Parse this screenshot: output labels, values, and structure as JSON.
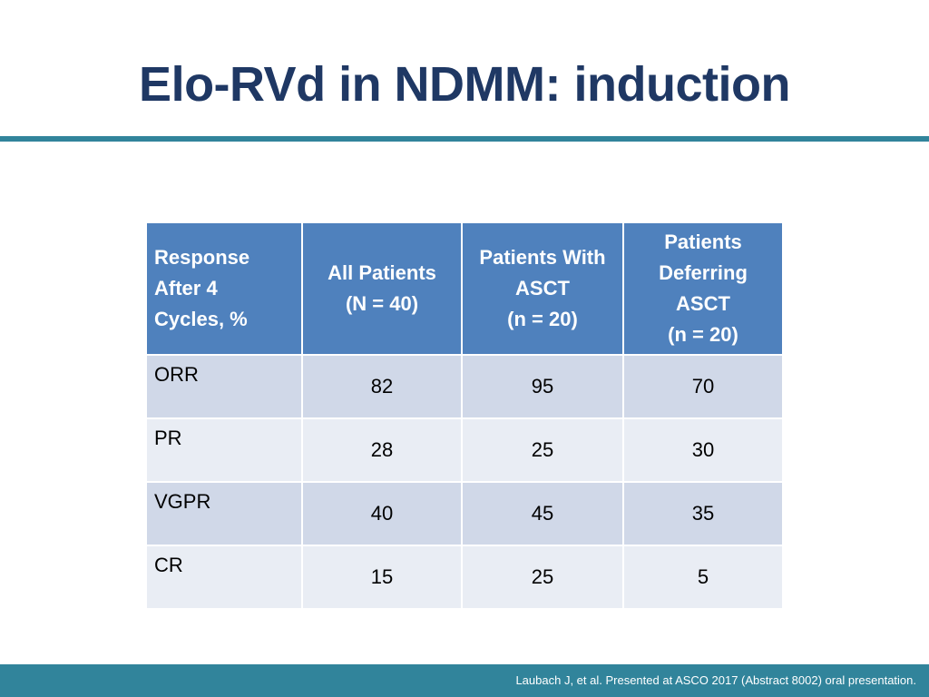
{
  "slide": {
    "title": "Elo-RVd in NDMM: induction",
    "footer": "Laubach J, et al. Presented at ASCO 2017 (Abstract 8002) oral presentation."
  },
  "table": {
    "headers": [
      "Response\nAfter 4\nCycles, %",
      "All Patients\n(N = 40)",
      "Patients With\nASCT\n(n = 20)",
      "Patients\nDeferring\nASCT\n(n = 20)"
    ],
    "rows": [
      {
        "label": "ORR",
        "values": [
          "82",
          "95",
          "70"
        ]
      },
      {
        "label": "PR",
        "values": [
          "28",
          "25",
          "30"
        ]
      },
      {
        "label": "VGPR",
        "values": [
          "40",
          "45",
          "35"
        ]
      },
      {
        "label": "CR",
        "values": [
          "15",
          "25",
          "5"
        ]
      }
    ]
  },
  "colors": {
    "title": "#1f3864",
    "accent": "#31849b",
    "header": "#4f81bd",
    "row_dark": "#d0d8e8",
    "row_light": "#e9edf4"
  }
}
